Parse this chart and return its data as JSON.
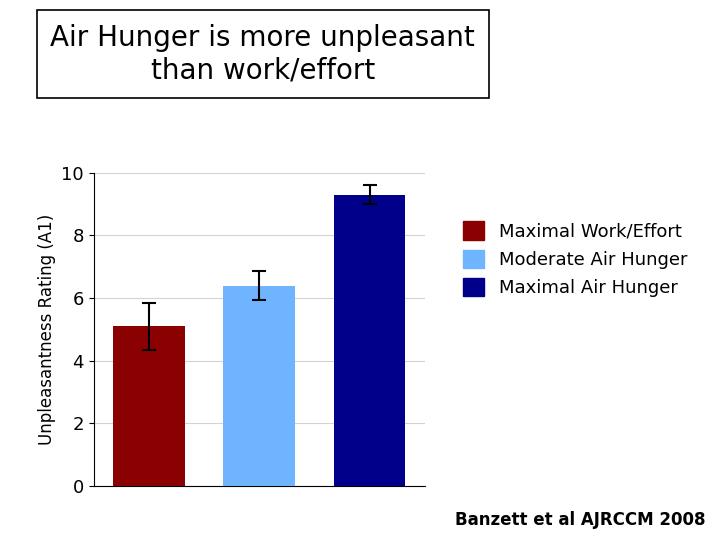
{
  "title": "Air Hunger is more unpleasant\nthan work/effort",
  "ylabel": "Unpleasantness Rating (A1)",
  "categories": [
    "Maximal Work/Effort",
    "Moderate Air Hunger",
    "Maximal Air Hunger"
  ],
  "values": [
    5.1,
    6.4,
    9.3
  ],
  "errors": [
    0.75,
    0.45,
    0.3
  ],
  "bar_colors": [
    "#8B0000",
    "#6EB4FF",
    "#00008B"
  ],
  "legend_colors": [
    "#8B0000",
    "#6EB4FF",
    "#00008B"
  ],
  "legend_labels": [
    "Maximal Work/Effort",
    "Moderate Air Hunger",
    "Maximal Air Hunger"
  ],
  "ylim": [
    0,
    10
  ],
  "yticks": [
    0,
    2,
    4,
    6,
    8,
    10
  ],
  "title_fontsize": 20,
  "ylabel_fontsize": 12,
  "tick_fontsize": 13,
  "legend_fontsize": 13,
  "footnote": "Banzett et al AJRCCM 2008",
  "footnote_fontsize": 12,
  "background_color": "#FFFFFF",
  "plot_bg_color": "#FFFFFF"
}
